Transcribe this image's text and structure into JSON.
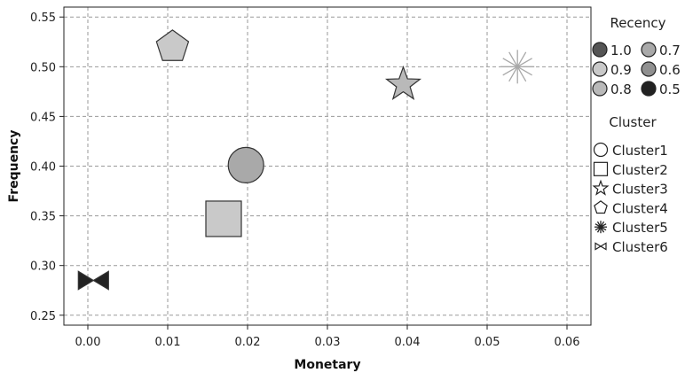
{
  "chart_data": {
    "type": "scatter",
    "title": "",
    "xlabel": "Monetary",
    "ylabel": "Frequency",
    "xlim": [
      -0.003,
      0.063
    ],
    "ylim": [
      0.24,
      0.56
    ],
    "xticks": [
      0.0,
      0.01,
      0.02,
      0.03,
      0.04,
      0.05,
      0.06
    ],
    "xtick_labels": [
      "0.00",
      "0.01",
      "0.02",
      "0.03",
      "0.04",
      "0.05",
      "0.06"
    ],
    "yticks": [
      0.25,
      0.3,
      0.35,
      0.4,
      0.45,
      0.5,
      0.55
    ],
    "ytick_labels": [
      "0.25",
      "0.30",
      "0.35",
      "0.40",
      "0.45",
      "0.50",
      "0.55"
    ],
    "grid": true,
    "legend_placement": "right",
    "points": [
      {
        "cluster": "Cluster1",
        "monetary": 0.0198,
        "frequency": 0.401,
        "recency": 0.7,
        "marker": "circle"
      },
      {
        "cluster": "Cluster2",
        "monetary": 0.017,
        "frequency": 0.347,
        "recency": 0.9,
        "marker": "square"
      },
      {
        "cluster": "Cluster3",
        "monetary": 0.0395,
        "frequency": 0.482,
        "recency": 0.8,
        "marker": "star"
      },
      {
        "cluster": "Cluster4",
        "monetary": 0.0106,
        "frequency": 0.52,
        "recency": 0.9,
        "marker": "pentagon"
      },
      {
        "cluster": "Cluster5",
        "monetary": 0.0538,
        "frequency": 0.5,
        "recency": 0.8,
        "marker": "asterisk"
      },
      {
        "cluster": "Cluster6",
        "monetary": 0.0007,
        "frequency": 0.285,
        "recency": 0.5,
        "marker": "bowtie"
      }
    ],
    "recency_legend": {
      "title": "Recency",
      "items": [
        {
          "label": "1.0",
          "color": "#555555"
        },
        {
          "label": "0.7",
          "color": "#a9a9a9"
        },
        {
          "label": "0.9",
          "color": "#c9c9c9"
        },
        {
          "label": "0.6",
          "color": "#909090"
        },
        {
          "label": "0.8",
          "color": "#b9b9b9"
        },
        {
          "label": "0.5",
          "color": "#222222"
        }
      ]
    },
    "cluster_legend": {
      "title": "Cluster",
      "items": [
        {
          "label": "Cluster1",
          "marker": "circle"
        },
        {
          "label": "Cluster2",
          "marker": "square"
        },
        {
          "label": "Cluster3",
          "marker": "star"
        },
        {
          "label": "Cluster4",
          "marker": "pentagon"
        },
        {
          "label": "Cluster5",
          "marker": "asterisk"
        },
        {
          "label": "Cluster6",
          "marker": "bowtie"
        }
      ]
    },
    "colors": {
      "grid": "#9a9a9a",
      "axis": "#222222",
      "marker_edge": "#333333",
      "cluster5_stroke": "#a8a8a8"
    }
  }
}
